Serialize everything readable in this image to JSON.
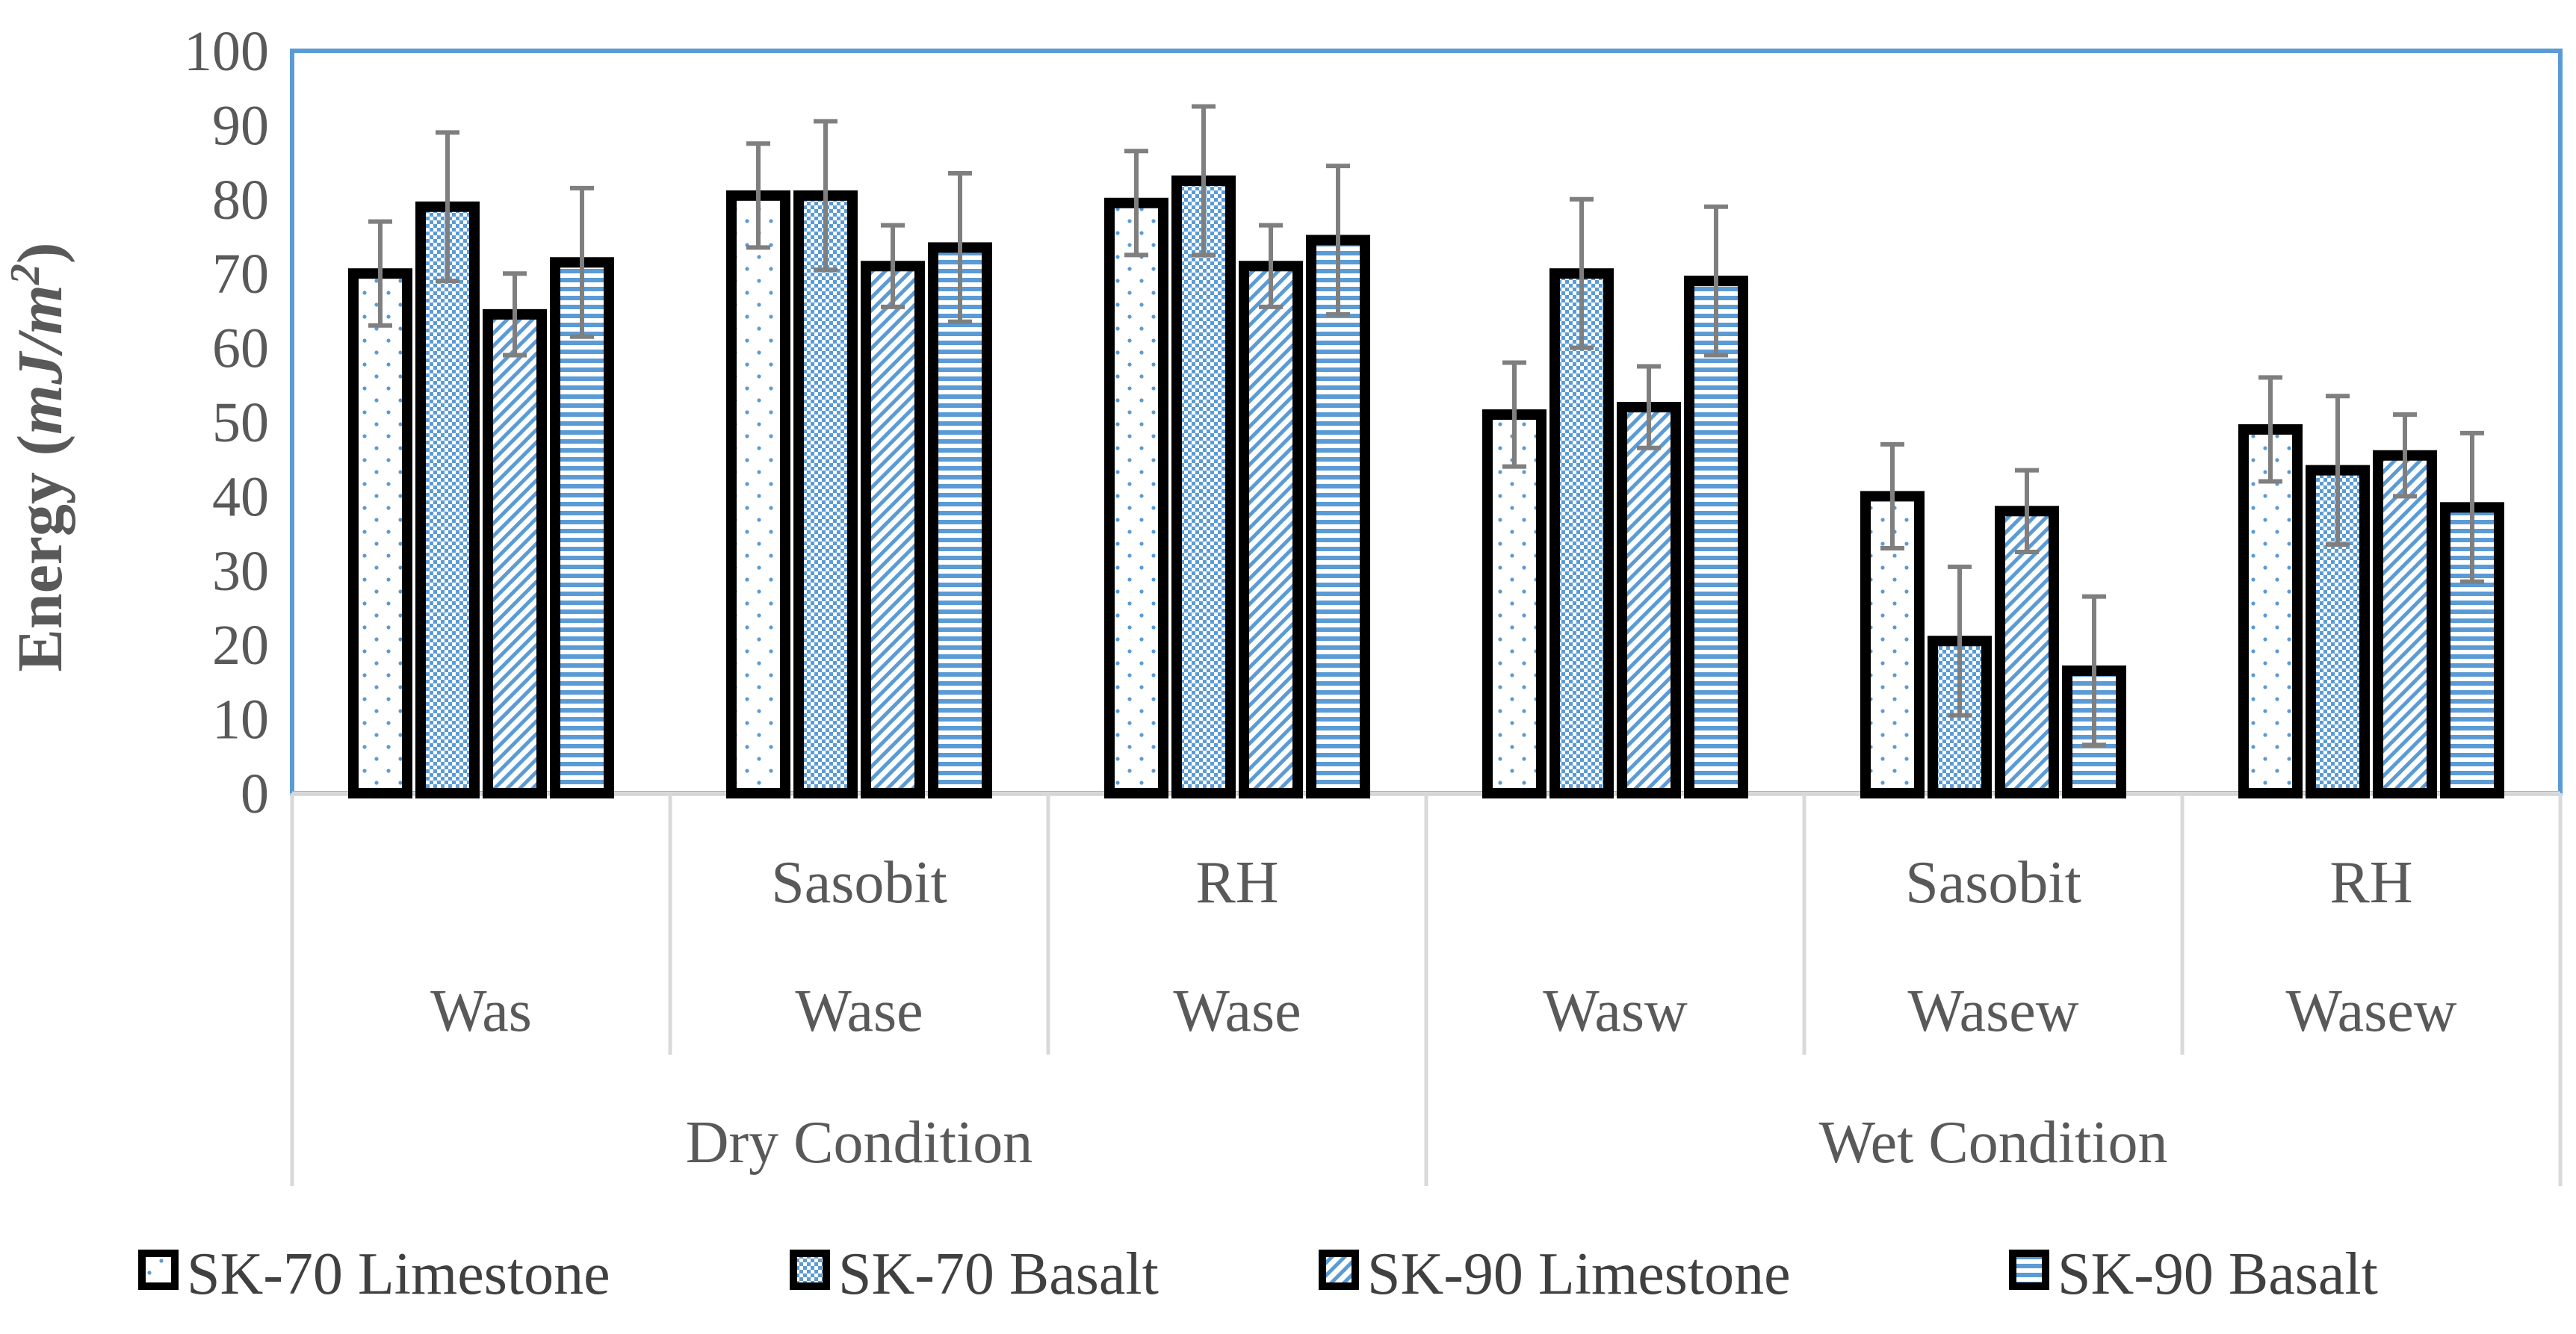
{
  "chart_data": {
    "type": "bar",
    "title": "",
    "xlabel": "",
    "ylabel": {
      "prefix": "Energy (",
      "unit": "mJ/m",
      "exponent": "2",
      "suffix": ")"
    },
    "ylim": [
      0,
      100
    ],
    "yticks": [
      "0",
      "10",
      "20",
      "30",
      "40",
      "50",
      "60",
      "70",
      "80",
      "90",
      "100"
    ],
    "grid": false,
    "legend_position": "bottom",
    "categories": [
      {
        "line1": "",
        "line2": "Was"
      },
      {
        "line1": "Sasobit",
        "line2": "Wase"
      },
      {
        "line1": "RH",
        "line2": "Wase"
      },
      {
        "line1": "",
        "line2": "Wasw"
      },
      {
        "line1": "Sasobit",
        "line2": "Wasew"
      },
      {
        "line1": "RH",
        "line2": "Wasew"
      }
    ],
    "groups": [
      {
        "label": "Dry Condition",
        "span": [
          0,
          2
        ]
      },
      {
        "label": "Wet Condition",
        "span": [
          3,
          5
        ]
      }
    ],
    "series": [
      {
        "name": "SK-70 Limestone",
        "pattern": "dots",
        "values": [
          70,
          80.5,
          79.5,
          51,
          40,
          49
        ],
        "errors": [
          7,
          7,
          7,
          7,
          7,
          7
        ]
      },
      {
        "name": "SK-70 Basalt",
        "pattern": "checker",
        "values": [
          79,
          80.5,
          82.5,
          70,
          20.5,
          43.5
        ],
        "errors": [
          10,
          10,
          10,
          10,
          10,
          10
        ]
      },
      {
        "name": "SK-90 Limestone",
        "pattern": "diagonal",
        "values": [
          64.5,
          71,
          71,
          52,
          38,
          45.5
        ],
        "errors": [
          5.5,
          5.5,
          5.5,
          5.5,
          5.5,
          5.5
        ]
      },
      {
        "name": "SK-90 Basalt",
        "pattern": "horizontal",
        "values": [
          71.5,
          73.5,
          74.5,
          69,
          16.5,
          38.5
        ],
        "errors": [
          10,
          10,
          10,
          10,
          10,
          10
        ]
      }
    ],
    "colors": {
      "bar_outline": "#000000",
      "pattern": "#5B9BD5",
      "error_bar": "#7F7F7F",
      "plot_border": "#5B9BD5",
      "axis_line": "#D9D9D9",
      "text": "#595959"
    }
  }
}
